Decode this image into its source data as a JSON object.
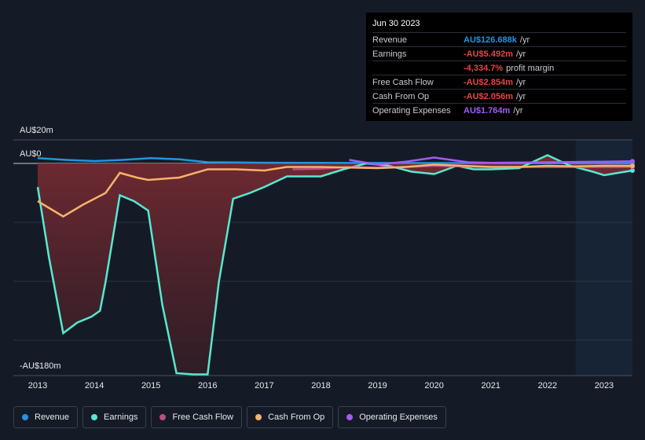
{
  "chart_data": {
    "type": "line",
    "xlim": [
      2012.57,
      2023.5
    ],
    "xticks": [
      2013,
      2014,
      2015,
      2016,
      2017,
      2018,
      2019,
      2020,
      2021,
      2022,
      2023
    ],
    "ylim": [
      -180,
      20
    ],
    "yticks": [
      {
        "value": 20,
        "label": "AU$20m"
      },
      {
        "value": 0,
        "label": "AU$0"
      },
      {
        "value": -180,
        "label": "-AU$180m"
      }
    ],
    "ygrid": [
      -50,
      -100,
      -150
    ],
    "highlight_from": 2022.5,
    "area_series": 1,
    "series": [
      {
        "name": "Revenue",
        "color": "#2394df",
        "x": [
          2013,
          2013.5,
          2014,
          2014.5,
          2015,
          2015.5,
          2016,
          2016.5,
          2017,
          2018,
          2019,
          2020,
          2021,
          2022,
          2023,
          2023.5
        ],
        "values": [
          4.5,
          3,
          2,
          3,
          4.5,
          3.5,
          1,
          0.8,
          0.6,
          0.5,
          0.4,
          0.3,
          0.3,
          0.2,
          0.2,
          0.1
        ]
      },
      {
        "name": "Earnings",
        "color": "#58e8cf",
        "x": [
          2013,
          2013.2,
          2013.45,
          2013.7,
          2013.95,
          2014.1,
          2014.2,
          2014.45,
          2014.7,
          2014.95,
          2015.2,
          2015.45,
          2015.75,
          2016.0,
          2016.2,
          2016.45,
          2016.75,
          2017.0,
          2017.4,
          2017.8,
          2018.0,
          2018.4,
          2018.8,
          2019.2,
          2019.6,
          2020.0,
          2020.4,
          2020.7,
          2021.0,
          2021.5,
          2022.0,
          2022.4,
          2022.8,
          2023.0,
          2023.5
        ],
        "values": [
          -20,
          -80,
          -144,
          -135,
          -130,
          -125,
          -100,
          -27,
          -32,
          -40,
          -120,
          -178,
          -179,
          -179,
          -100,
          -30,
          -25,
          -20,
          -11,
          -11,
          -11,
          -5,
          0,
          -2,
          -7,
          -9,
          -2,
          -5,
          -5,
          -4,
          7,
          -2,
          -7,
          -10,
          -6
        ]
      },
      {
        "name": "Free Cash Flow",
        "color": "#c24a7f",
        "x": [
          2017.5,
          2018,
          2018.5,
          2019,
          2019.5,
          2020,
          2020.5,
          2021,
          2022,
          2023,
          2023.5
        ],
        "values": [
          -5,
          -4.5,
          -3,
          -3.5,
          -3,
          -2,
          -2.5,
          -3,
          -3,
          -3,
          -2.9
        ]
      },
      {
        "name": "Cash From Op",
        "color": "#f5b36b",
        "x": [
          2013,
          2013.45,
          2013.8,
          2014.2,
          2014.45,
          2014.75,
          2014.95,
          2015.5,
          2016.0,
          2016.5,
          2017,
          2017.4,
          2018,
          2018.5,
          2019,
          2019.5,
          2020,
          2020.5,
          2021,
          2021.5,
          2022,
          2022.5,
          2023,
          2023.5
        ],
        "values": [
          -32,
          -45,
          -35,
          -25,
          -8,
          -12,
          -14,
          -12,
          -5,
          -5,
          -6,
          -3,
          -3,
          -3.5,
          -4,
          -3,
          -1,
          -2,
          -3,
          -3,
          -2,
          -2.5,
          -2,
          -2.1
        ]
      },
      {
        "name": "Operating Expenses",
        "color": "#a35cf4",
        "x": [
          2018.5,
          2019,
          2019.5,
          2020,
          2020.3,
          2020.6,
          2021,
          2022,
          2023,
          2023.5
        ],
        "values": [
          3,
          -1,
          1.5,
          5,
          3,
          1,
          0.5,
          1,
          1.5,
          1.8
        ]
      }
    ]
  },
  "tooltip": {
    "date": "Jun 30 2023",
    "rows": [
      {
        "label": "Revenue",
        "value": "AU$126.688k",
        "unit": "/yr",
        "color": "#2394df"
      },
      {
        "label": "Earnings",
        "value": "-AU$5.492m",
        "unit": "/yr",
        "color": "#e64545"
      },
      {
        "value": "-4,334.7%",
        "unit": "profit margin",
        "color": "#e64545"
      },
      {
        "label": "Free Cash Flow",
        "value": "-AU$2.854m",
        "unit": "/yr",
        "color": "#e64545"
      },
      {
        "label": "Cash From Op",
        "value": "-AU$2.056m",
        "unit": "/yr",
        "color": "#e64545"
      },
      {
        "label": "Operating Expenses",
        "value": "AU$1.764m",
        "unit": "/yr",
        "color": "#a35cf4"
      }
    ]
  }
}
